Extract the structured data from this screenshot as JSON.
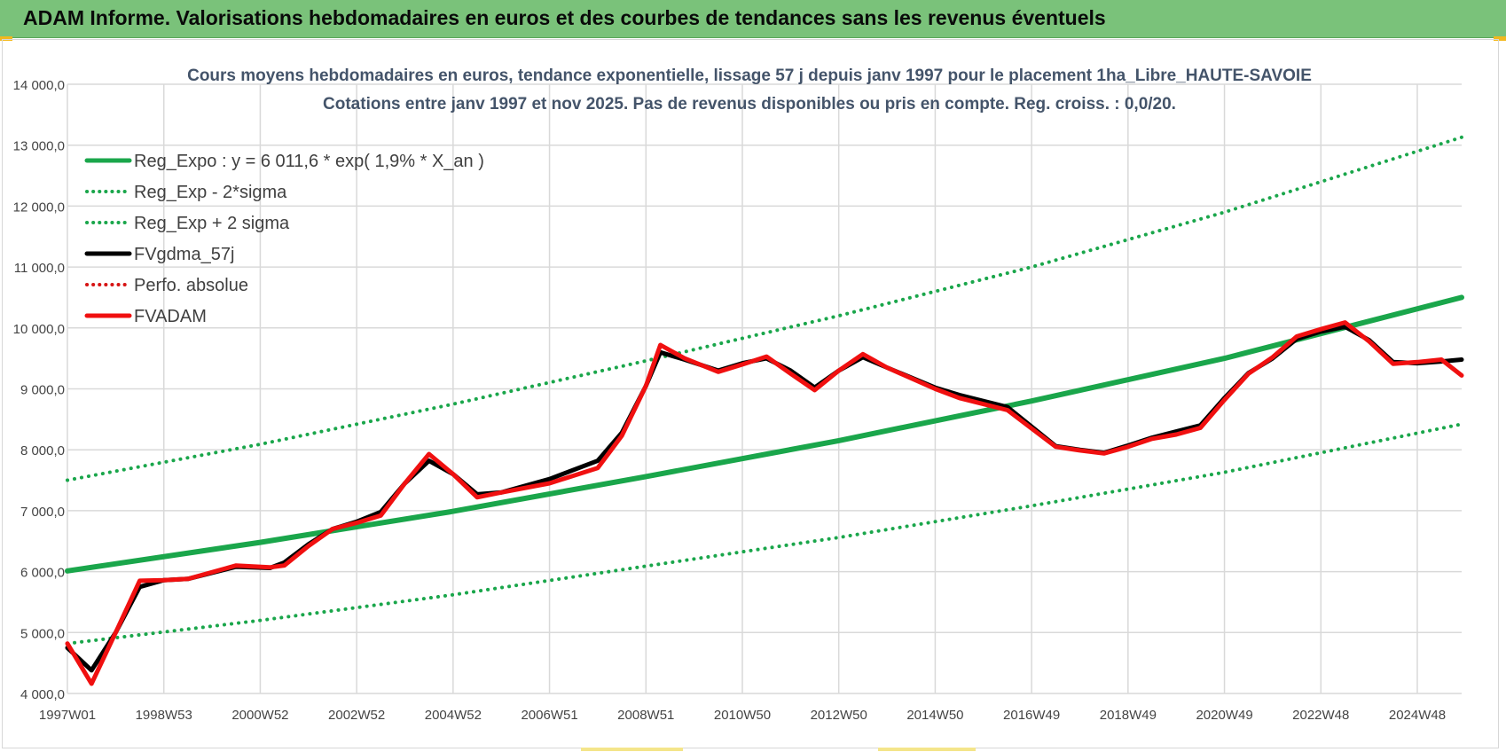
{
  "page": {
    "banner_title": "ADAM Informe. Valorisations hebdomadaires en euros et des courbes de tendances sans les revenus éventuels"
  },
  "chart_data": {
    "type": "line",
    "title": "Cours moyens  hebdomadaires en euros, tendance exponentielle, lissage 57 j depuis janv 1997 pour le placement 1ha_Libre_HAUTE-SAVOIE",
    "subtitle": "Cotations entre janv 1997 et nov 2025. Pas de revenus disponibles ou pris en compte. Reg. croiss. : 0,0/20.",
    "xlabel": "",
    "ylabel": "",
    "ylim": [
      4000,
      14000
    ],
    "xlim": [
      1997.0,
      2025.92
    ],
    "yticks": [
      {
        "value": 4000,
        "label": "4 000,0"
      },
      {
        "value": 5000,
        "label": "5 000,0"
      },
      {
        "value": 6000,
        "label": "6 000,0"
      },
      {
        "value": 7000,
        "label": "7 000,0"
      },
      {
        "value": 8000,
        "label": "8 000,0"
      },
      {
        "value": 9000,
        "label": "9 000,0"
      },
      {
        "value": 10000,
        "label": "10 000,0"
      },
      {
        "value": 11000,
        "label": "11 000,0"
      },
      {
        "value": 12000,
        "label": "12 000,0"
      },
      {
        "value": 13000,
        "label": "13 000,0"
      },
      {
        "value": 14000,
        "label": "14 000,0"
      }
    ],
    "xticks": [
      {
        "value": 1997.0,
        "label": "1997W01"
      },
      {
        "value": 1999.0,
        "label": "1998W53"
      },
      {
        "value": 2001.0,
        "label": "2000W52"
      },
      {
        "value": 2003.0,
        "label": "2002W52"
      },
      {
        "value": 2005.0,
        "label": "2004W52"
      },
      {
        "value": 2007.0,
        "label": "2006W51"
      },
      {
        "value": 2009.0,
        "label": "2008W51"
      },
      {
        "value": 2011.0,
        "label": "2010W50"
      },
      {
        "value": 2013.0,
        "label": "2012W50"
      },
      {
        "value": 2015.0,
        "label": "2014W50"
      },
      {
        "value": 2017.0,
        "label": "2016W49"
      },
      {
        "value": 2019.0,
        "label": "2018W49"
      },
      {
        "value": 2021.0,
        "label": "2020W49"
      },
      {
        "value": 2023.0,
        "label": "2022W48"
      },
      {
        "value": 2025.0,
        "label": "2024W48"
      }
    ],
    "grid": true,
    "legend_position": "top-left",
    "series": [
      {
        "name": "Reg_Expo : y = 6 011,6 * exp( 1,9% *  X_an )",
        "color": "#1aa64b",
        "style": "solid",
        "width": 6,
        "x": [
          1997,
          2001,
          2005,
          2009,
          2013,
          2017,
          2021,
          2025.92
        ],
        "values": [
          6012,
          6480,
          6990,
          7560,
          8150,
          8800,
          9500,
          10500
        ]
      },
      {
        "name": "Reg_Exp - 2*sigma",
        "color": "#1aa64b",
        "style": "dotted",
        "width": 4,
        "x": [
          1997,
          2001,
          2005,
          2009,
          2013,
          2017,
          2021,
          2025.92
        ],
        "values": [
          4820,
          5200,
          5620,
          6090,
          6560,
          7080,
          7630,
          8420
        ]
      },
      {
        "name": "Reg_Exp + 2 sigma",
        "color": "#1aa64b",
        "style": "dotted",
        "width": 4,
        "x": [
          1997,
          2001,
          2005,
          2009,
          2013,
          2017,
          2021,
          2025.92
        ],
        "values": [
          7500,
          8090,
          8750,
          9460,
          10200,
          11000,
          11900,
          13130
        ]
      },
      {
        "name": "FVgdma_57j",
        "color": "#000000",
        "style": "solid",
        "width": 5,
        "x": [
          1997.0,
          1997.5,
          1998.0,
          1998.5,
          1999.0,
          1999.5,
          2000.5,
          2001.2,
          2001.5,
          2002.0,
          2002.5,
          2003.0,
          2003.5,
          2004.0,
          2004.5,
          2005.0,
          2005.5,
          2006.0,
          2007.0,
          2008.0,
          2008.5,
          2009.0,
          2009.3,
          2009.8,
          2010.5,
          2011.0,
          2011.5,
          2012.0,
          2012.5,
          2013.0,
          2013.5,
          2014.0,
          2015.0,
          2015.5,
          2016.5,
          2017.0,
          2017.5,
          2018.0,
          2018.5,
          2019.0,
          2019.5,
          2020.0,
          2020.5,
          2021.0,
          2021.5,
          2022.0,
          2022.5,
          2023.0,
          2023.5,
          2024.0,
          2024.5,
          2025.0,
          2025.5,
          2025.92
        ],
        "values": [
          4750,
          4380,
          5000,
          5750,
          5860,
          5880,
          6080,
          6060,
          6150,
          6450,
          6700,
          6820,
          6980,
          7450,
          7820,
          7600,
          7270,
          7300,
          7520,
          7820,
          8280,
          9050,
          9600,
          9480,
          9300,
          9420,
          9500,
          9300,
          9020,
          9300,
          9520,
          9350,
          9020,
          8900,
          8700,
          8380,
          8060,
          8000,
          7950,
          8070,
          8200,
          8300,
          8400,
          8850,
          9260,
          9500,
          9820,
          9940,
          10020,
          9800,
          9440,
          9420,
          9450,
          9480
        ]
      },
      {
        "name": "Perfo. absolue",
        "color": "#d61414",
        "style": "dotted",
        "width": 3,
        "x": [],
        "values": []
      },
      {
        "name": "FVADAM",
        "color": "#f01010",
        "style": "solid",
        "width": 5,
        "x": [
          1997.0,
          1997.5,
          1998.0,
          1998.5,
          1999.0,
          1999.5,
          2000.5,
          2001.2,
          2001.5,
          2002.0,
          2002.5,
          2003.0,
          2003.5,
          2004.0,
          2004.5,
          2005.0,
          2005.5,
          2006.0,
          2007.0,
          2008.0,
          2008.5,
          2009.0,
          2009.3,
          2009.8,
          2010.5,
          2011.0,
          2011.5,
          2012.0,
          2012.5,
          2013.0,
          2013.5,
          2014.0,
          2015.0,
          2015.5,
          2016.5,
          2017.0,
          2017.5,
          2018.0,
          2018.5,
          2019.0,
          2019.5,
          2020.0,
          2020.5,
          2021.0,
          2021.5,
          2022.0,
          2022.5,
          2023.0,
          2023.5,
          2024.0,
          2024.5,
          2025.0,
          2025.5,
          2025.92
        ],
        "values": [
          4820,
          4160,
          5000,
          5850,
          5860,
          5880,
          6100,
          6070,
          6100,
          6420,
          6700,
          6800,
          6920,
          7450,
          7930,
          7600,
          7220,
          7300,
          7450,
          7700,
          8230,
          9050,
          9720,
          9500,
          9280,
          9400,
          9530,
          9250,
          8980,
          9300,
          9570,
          9350,
          9000,
          8850,
          8650,
          8350,
          8050,
          7990,
          7940,
          8050,
          8180,
          8250,
          8360,
          8820,
          9250,
          9520,
          9860,
          9980,
          10090,
          9780,
          9410,
          9440,
          9480,
          9220
        ]
      }
    ]
  }
}
